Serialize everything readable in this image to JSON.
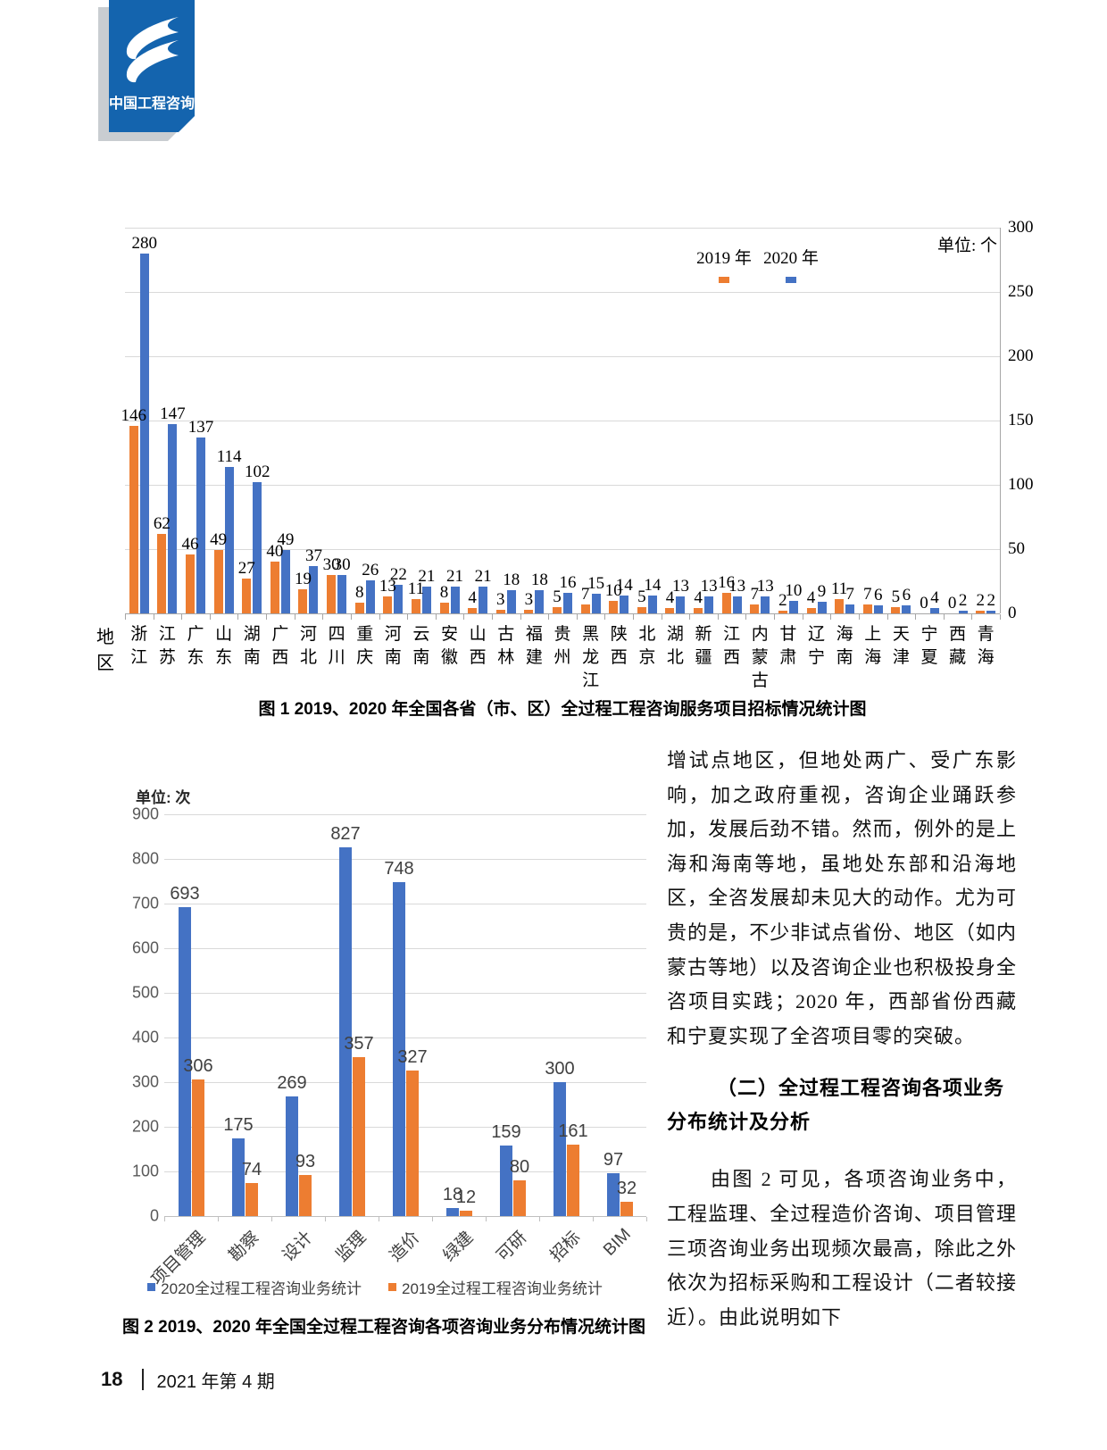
{
  "logo": {
    "text": "中国工程咨询"
  },
  "colors": {
    "blue": "#4472C4",
    "orange": "#ED7D31",
    "logo_blue": "#1464AE"
  },
  "chart_data": [
    {
      "id": "fig1",
      "type": "bar",
      "title": "图 1  2019、2020 年全国各省（市、区）全过程工程咨询服务项目招标情况统计图",
      "unit": "单位: 个",
      "x_axis_title": "地区",
      "ylim": [
        0,
        300
      ],
      "ytick_step": 50,
      "grid": true,
      "legend_position": "top",
      "categories": [
        "浙江",
        "江苏",
        "广东",
        "山东",
        "湖南",
        "广西",
        "河北",
        "四川",
        "重庆",
        "河南",
        "云南",
        "安徽",
        "山西",
        "古林",
        "福建",
        "贵州",
        "黑龙江",
        "陕西",
        "北京",
        "湖北",
        "新疆",
        "江西",
        "内蒙古",
        "甘肃",
        "辽宁",
        "海南",
        "上海",
        "天津",
        "宁夏",
        "西藏",
        "青海"
      ],
      "series": [
        {
          "name": "2019 年",
          "color": "#ED7D31",
          "values": [
            146,
            62,
            46,
            49,
            27,
            40,
            19,
            30,
            8,
            13,
            11,
            8,
            4,
            3,
            3,
            5,
            7,
            10,
            5,
            4,
            4,
            16,
            7,
            2,
            4,
            11,
            7,
            5,
            0,
            0,
            2
          ]
        },
        {
          "name": "2020 年",
          "color": "#4472C4",
          "values": [
            280,
            147,
            137,
            114,
            102,
            49,
            37,
            30,
            26,
            22,
            21,
            21,
            21,
            18,
            18,
            16,
            15,
            14,
            14,
            13,
            13,
            13,
            13,
            10,
            9,
            7,
            6,
            6,
            4,
            2,
            2
          ]
        }
      ]
    },
    {
      "id": "fig2",
      "type": "bar",
      "title": "图 2  2019、2020 年全国全过程工程咨询各项咨询业务分布情况统计图",
      "unit": "单位: 次",
      "ylim": [
        0,
        900
      ],
      "ytick_step": 100,
      "grid": true,
      "legend_position": "bottom",
      "categories": [
        "项目管理",
        "勘察",
        "设计",
        "监理",
        "造价",
        "绿建",
        "可研",
        "招标",
        "BIM"
      ],
      "series": [
        {
          "name": "2020全过程工程咨询业务统计",
          "color": "#4472C4",
          "values": [
            693,
            175,
            269,
            827,
            748,
            18,
            159,
            300,
            97
          ]
        },
        {
          "name": "2019全过程工程咨询业务统计",
          "color": "#ED7D31",
          "values": [
            306,
            74,
            93,
            357,
            327,
            12,
            80,
            161,
            32
          ]
        }
      ]
    }
  ],
  "right_column": {
    "para1": "增试点地区，但地处两广、受广东影响，加之政府重视，咨询企业踊跃参加，发展后劲不错。然而，例外的是上海和海南等地，虽地处东部和沿海地区，全咨发展却未见大的动作。尤为可贵的是，不少非试点省份、地区（如内蒙古等地）以及咨询企业也积极投身全咨项目实践；2020 年，西部省份西藏和宁夏实现了全咨项目零的突破。",
    "heading": "（二）全过程工程咨询各项业务分布统计及分析",
    "para2": "由图 2 可见，各项咨询业务中，工程监理、全过程造价咨询、项目管理三项咨询业务出现频次最高，除此之外依次为招标采购和工程设计（二者较接近）。由此说明如下"
  },
  "footer": {
    "page_number": "18",
    "issue": "2021 年第 4 期"
  }
}
